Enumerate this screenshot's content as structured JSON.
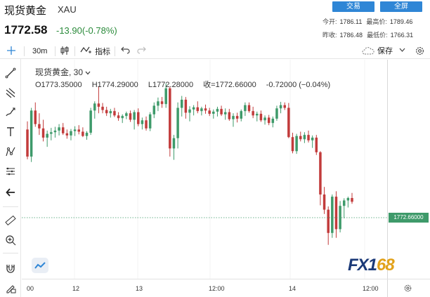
{
  "header": {
    "title": "现货黄金",
    "symbol": "XAU",
    "price": "1772.58",
    "change": "-13.90(-0.78%)",
    "buttons": [
      "交易",
      "全屏"
    ],
    "stats": {
      "open_label": "今开:",
      "open_value": "1786.11",
      "high_label": "最高价:",
      "high_value": "1789.46",
      "prev_close_label": "昨收:",
      "prev_close_value": "1786.48",
      "low_label": "最低价:",
      "low_value": "1766.31"
    }
  },
  "toolbar": {
    "interval": "30m",
    "indicators_label": "指标",
    "save_label": "保存"
  },
  "rail_tools": [
    "crosshair-icon",
    "trend-line-icon",
    "pitchfork-icon",
    "brush-icon",
    "text-icon",
    "pattern-icon",
    "measure-icon",
    "back-arrow-icon",
    "ruler-icon",
    "zoom-in-icon",
    "magnet-icon",
    "lock-draw-icon"
  ],
  "chart": {
    "legend_title": "现货黄金, 30",
    "ohlc": {
      "open": "O1773.35000",
      "high": "H1774.29000",
      "low": "L1772.28000",
      "close": "收=1772.66000",
      "change": "-0.72000 (−0.04%)"
    },
    "last_price_tag": "1772.66000",
    "x_labels": [
      "00",
      "12",
      "13",
      "12:00",
      "14",
      "12:00"
    ],
    "colors": {
      "up": "#3e9a6a",
      "down": "#c23b3b",
      "brand_blue": "#2f86d6"
    },
    "watermark": {
      "part_a": "FX1",
      "part_b": "68"
    }
  },
  "chart_data": {
    "type": "candlestick",
    "y_range": [
      1760,
      1795
    ],
    "last_price": 1772.66,
    "candles": [
      [
        1786.0,
        1787.5,
        1780.5,
        1781.0
      ],
      [
        1781.0,
        1790.0,
        1780.0,
        1789.5
      ],
      [
        1789.5,
        1791.0,
        1786.5,
        1787.0
      ],
      [
        1787.0,
        1789.0,
        1785.0,
        1786.2
      ],
      [
        1786.2,
        1787.8,
        1783.8,
        1784.5
      ],
      [
        1784.5,
        1785.8,
        1782.8,
        1785.2
      ],
      [
        1785.2,
        1786.3,
        1784.0,
        1785.5
      ],
      [
        1785.5,
        1786.5,
        1784.5,
        1785.8
      ],
      [
        1785.8,
        1787.0,
        1784.9,
        1786.4
      ],
      [
        1786.4,
        1787.2,
        1785.0,
        1785.3
      ],
      [
        1785.3,
        1786.0,
        1784.3,
        1784.9
      ],
      [
        1784.9,
        1786.1,
        1784.0,
        1785.7
      ],
      [
        1785.7,
        1786.6,
        1784.8,
        1786.0
      ],
      [
        1786.0,
        1786.8,
        1785.1,
        1785.6
      ],
      [
        1785.6,
        1786.4,
        1784.6,
        1784.8
      ],
      [
        1784.8,
        1785.7,
        1784.1,
        1785.4
      ],
      [
        1785.4,
        1790.0,
        1785.0,
        1789.5
      ],
      [
        1789.5,
        1791.2,
        1788.0,
        1790.8
      ],
      [
        1790.8,
        1794.0,
        1789.0,
        1790.2
      ],
      [
        1790.2,
        1790.9,
        1789.0,
        1789.6
      ],
      [
        1789.6,
        1790.2,
        1788.5,
        1789.0
      ],
      [
        1789.0,
        1789.8,
        1788.2,
        1789.4
      ],
      [
        1789.4,
        1790.0,
        1788.3,
        1788.6
      ],
      [
        1788.6,
        1789.2,
        1787.6,
        1788.1
      ],
      [
        1788.1,
        1788.8,
        1787.2,
        1788.5
      ],
      [
        1788.5,
        1789.3,
        1787.9,
        1789.0
      ],
      [
        1789.0,
        1789.5,
        1787.4,
        1787.8
      ],
      [
        1787.8,
        1789.6,
        1786.0,
        1789.2
      ],
      [
        1789.2,
        1789.9,
        1786.6,
        1787.0
      ],
      [
        1787.0,
        1788.2,
        1786.0,
        1787.7
      ],
      [
        1787.7,
        1788.4,
        1785.8,
        1786.2
      ],
      [
        1786.2,
        1789.2,
        1785.7,
        1788.8
      ],
      [
        1788.8,
        1791.0,
        1788.1,
        1790.4
      ],
      [
        1790.4,
        1791.9,
        1789.4,
        1791.2
      ],
      [
        1791.2,
        1792.0,
        1790.0,
        1790.7
      ],
      [
        1790.7,
        1794.5,
        1790.0,
        1793.6
      ],
      [
        1793.6,
        1793.9,
        1781.0,
        1782.5
      ],
      [
        1782.5,
        1785.0,
        1780.4,
        1784.4
      ],
      [
        1784.4,
        1791.0,
        1782.5,
        1790.0
      ],
      [
        1790.0,
        1792.2,
        1788.4,
        1791.5
      ],
      [
        1791.5,
        1792.0,
        1788.0,
        1789.1
      ],
      [
        1789.1,
        1790.3,
        1787.5,
        1789.7
      ],
      [
        1789.7,
        1790.5,
        1788.6,
        1790.1
      ],
      [
        1790.1,
        1791.2,
        1789.0,
        1789.4
      ],
      [
        1789.4,
        1790.2,
        1788.6,
        1789.9
      ],
      [
        1789.9,
        1790.6,
        1788.9,
        1789.5
      ],
      [
        1789.5,
        1790.0,
        1788.5,
        1788.9
      ],
      [
        1788.9,
        1789.7,
        1788.0,
        1789.3
      ],
      [
        1789.3,
        1790.2,
        1788.4,
        1789.8
      ],
      [
        1789.8,
        1790.4,
        1788.5,
        1788.8
      ],
      [
        1788.8,
        1789.9,
        1787.8,
        1789.2
      ],
      [
        1789.2,
        1789.8,
        1787.6,
        1787.9
      ],
      [
        1787.9,
        1789.0,
        1786.5,
        1788.5
      ],
      [
        1788.5,
        1789.1,
        1787.3,
        1788.0
      ],
      [
        1788.0,
        1789.7,
        1787.5,
        1789.4
      ],
      [
        1789.4,
        1791.0,
        1788.5,
        1790.5
      ],
      [
        1790.5,
        1791.0,
        1789.1,
        1789.4
      ],
      [
        1789.4,
        1790.2,
        1788.1,
        1788.6
      ],
      [
        1788.6,
        1789.3,
        1787.5,
        1788.9
      ],
      [
        1788.9,
        1789.5,
        1787.4,
        1787.7
      ],
      [
        1787.7,
        1788.6,
        1786.9,
        1788.2
      ],
      [
        1788.2,
        1788.7,
        1786.8,
        1787.2
      ],
      [
        1787.2,
        1788.4,
        1786.4,
        1788.0
      ],
      [
        1788.0,
        1790.4,
        1787.6,
        1789.9
      ],
      [
        1789.9,
        1791.1,
        1789.0,
        1790.5
      ],
      [
        1790.5,
        1791.0,
        1789.6,
        1790.0
      ],
      [
        1790.0,
        1790.9,
        1784.4,
        1784.6
      ],
      [
        1784.6,
        1785.4,
        1781.6,
        1782.0
      ],
      [
        1782.0,
        1785.2,
        1781.5,
        1784.8
      ],
      [
        1784.8,
        1785.6,
        1783.8,
        1784.2
      ],
      [
        1784.2,
        1785.5,
        1783.5,
        1785.0
      ],
      [
        1785.0,
        1785.8,
        1783.6,
        1784.0
      ],
      [
        1784.0,
        1784.9,
        1782.6,
        1784.5
      ],
      [
        1784.5,
        1785.0,
        1781.3,
        1781.8
      ],
      [
        1781.8,
        1782.0,
        1772.0,
        1774.0
      ],
      [
        1774.0,
        1775.4,
        1770.4,
        1771.2
      ],
      [
        1771.2,
        1771.8,
        1764.7,
        1766.9
      ],
      [
        1766.9,
        1774.0,
        1766.0,
        1773.6
      ],
      [
        1773.6,
        1774.6,
        1766.0,
        1767.6
      ],
      [
        1767.6,
        1772.8,
        1767.0,
        1771.9
      ],
      [
        1771.9,
        1773.3,
        1769.6,
        1772.9
      ],
      [
        1772.9,
        1773.6,
        1771.6,
        1773.35
      ],
      [
        1773.35,
        1774.29,
        1772.28,
        1772.66
      ]
    ]
  }
}
